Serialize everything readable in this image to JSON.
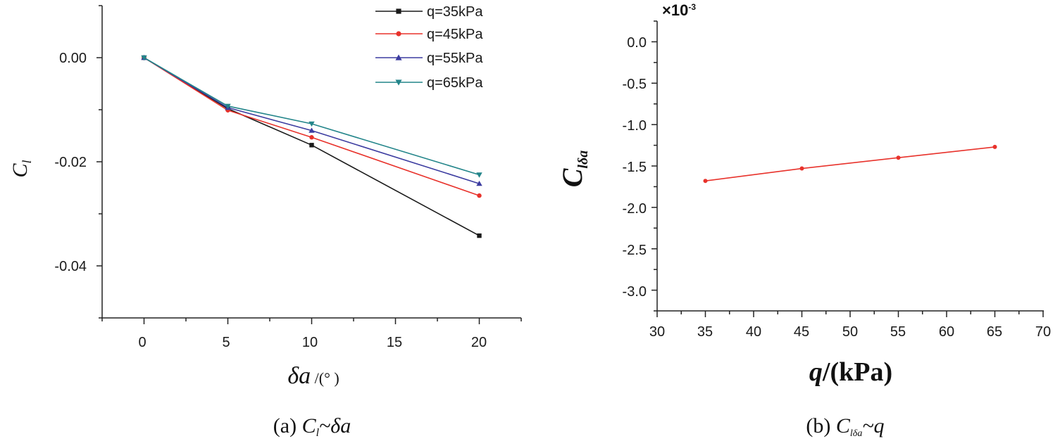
{
  "chart_data": [
    {
      "id": "a",
      "type": "line",
      "caption": {
        "prefix": "(a) ",
        "expr_c": "C",
        "expr_sub": "l",
        "expr_rest": "~δa"
      },
      "ylabel": {
        "main": "C",
        "sub": "l"
      },
      "xlabel": {
        "main": "δa",
        "rest": " /(° )"
      },
      "xlim": [
        -2.5,
        22.5
      ],
      "ylim": [
        -0.05,
        0.01
      ],
      "xticks": [
        0,
        5,
        10,
        15,
        20
      ],
      "xtick_labels": [
        "0",
        "5",
        "10",
        "15",
        "20"
      ],
      "yticks_labeled": [
        0.0,
        -0.02,
        -0.04
      ],
      "ytick_labels": [
        "0.00",
        "-0.02",
        "-0.04"
      ],
      "legend_position": "top-right",
      "x": [
        0,
        5,
        10,
        20
      ],
      "series": [
        {
          "name": "q=35kPa",
          "color": "#1a1a1a",
          "marker": "square",
          "values": [
            0.0,
            -0.0098,
            -0.0168,
            -0.0342
          ]
        },
        {
          "name": "q=45kPa",
          "color": "#e8322b",
          "marker": "circle",
          "values": [
            0.0,
            -0.0101,
            -0.0153,
            -0.0265
          ]
        },
        {
          "name": "q=55kPa",
          "color": "#3c3ca0",
          "marker": "triangle-up",
          "values": [
            0.0,
            -0.0096,
            -0.014,
            -0.0242
          ]
        },
        {
          "name": "q=65kPa",
          "color": "#23858a",
          "marker": "triangle-down",
          "values": [
            0.0,
            -0.0093,
            -0.0127,
            -0.0225
          ]
        }
      ]
    },
    {
      "id": "b",
      "type": "line",
      "caption": {
        "prefix": "(b) ",
        "expr_c": "C",
        "expr_sub": "lδa",
        "expr_rest": "~q"
      },
      "ylabel": {
        "main": "C",
        "sub": "lδa"
      },
      "xlabel": {
        "main": "q",
        "rest": "/(kPa)"
      },
      "multiplier": {
        "base": "×10",
        "exp": "-3"
      },
      "xlim": [
        30,
        70
      ],
      "ylim": [
        -3.25,
        0.25
      ],
      "xticks": [
        30,
        35,
        40,
        45,
        50,
        55,
        60,
        65,
        70
      ],
      "xtick_labels": [
        "30",
        "35",
        "40",
        "45",
        "50",
        "55",
        "60",
        "65",
        "70"
      ],
      "yticks": [
        0.0,
        -0.5,
        -1.0,
        -1.5,
        -2.0,
        -2.5,
        -3.0
      ],
      "ytick_labels": [
        "0.0",
        "-0.5",
        "-1.0",
        "-1.5",
        "-2.0",
        "-2.5",
        "-3.0"
      ],
      "x": [
        35,
        45,
        55,
        65
      ],
      "series": [
        {
          "name": "Clδa",
          "color": "#e8322b",
          "marker": "circle",
          "values": [
            -1.68,
            -1.53,
            -1.4,
            -1.27
          ]
        }
      ]
    }
  ]
}
